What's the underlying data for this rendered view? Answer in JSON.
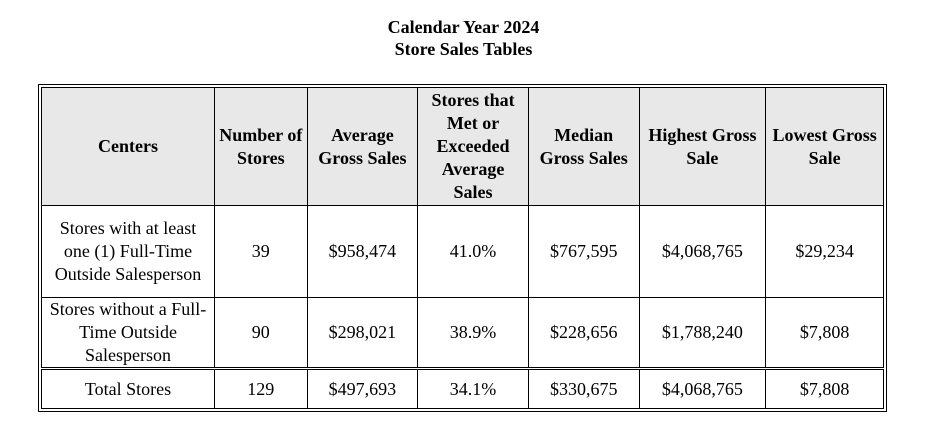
{
  "title": {
    "line1": "Calendar Year 2024",
    "line2": "Store Sales Tables"
  },
  "table": {
    "headers": [
      "Centers",
      "Number of Stores",
      "Average Gross Sales",
      "Stores that Met or Exceeded Average Sales",
      "Median Gross Sales",
      "Highest Gross Sale",
      "Lowest Gross Sale"
    ],
    "rows": [
      {
        "center": "Stores with at least one (1) Full-Time Outside Salesperson",
        "number_of_stores": "39",
        "average_gross_sales": "$958,474",
        "met_or_exceeded": "41.0%",
        "median_gross_sales": "$767,595",
        "highest_gross_sale": "$4,068,765",
        "lowest_gross_sale": "$29,234"
      },
      {
        "center": "Stores without a Full-Time Outside Salesperson",
        "number_of_stores": "90",
        "average_gross_sales": "$298,021",
        "met_or_exceeded": "38.9%",
        "median_gross_sales": "$228,656",
        "highest_gross_sale": "$1,788,240",
        "lowest_gross_sale": "$7,808"
      },
      {
        "center": "Total Stores",
        "number_of_stores": "129",
        "average_gross_sales": "$497,693",
        "met_or_exceeded": "34.1%",
        "median_gross_sales": "$330,675",
        "highest_gross_sale": "$4,068,765",
        "lowest_gross_sale": "$7,808"
      }
    ]
  }
}
